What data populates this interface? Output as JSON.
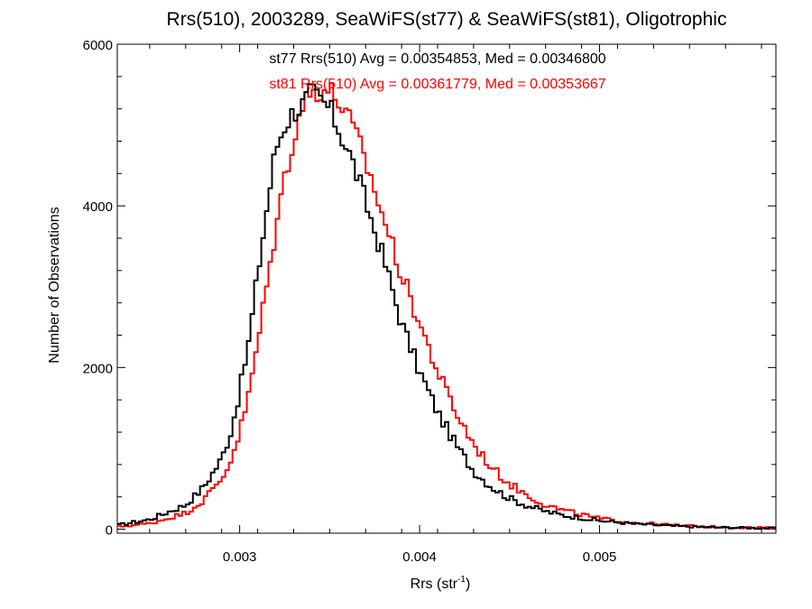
{
  "chart_data": {
    "type": "line",
    "title": "Rrs(510), 2003289, SeaWiFS(st77) & SeaWiFS(st81), Oligotrophic",
    "xlabel_main": "Rrs (str",
    "xlabel_sup": "-1",
    "xlabel_close": ")",
    "ylabel": "Number of Observations",
    "xlim": [
      0.00232,
      0.00598
    ],
    "ylim": [
      -50,
      6000
    ],
    "xticks": [
      0.003,
      0.004,
      0.005
    ],
    "xtick_labels": [
      "0.003",
      "0.004",
      "0.005"
    ],
    "yticks": [
      0,
      2000,
      4000,
      6000
    ],
    "ytick_labels": [
      "0",
      "2000",
      "4000",
      "6000"
    ],
    "grid": false,
    "legend_position": "top-center",
    "series": [
      {
        "name": "st77 Rrs(510) Avg = 0.00354853, Med = 0.00346800",
        "color": "#000000",
        "x": [
          0.00232,
          0.0025,
          0.0027,
          0.0028,
          0.0029,
          0.00295,
          0.003,
          0.00305,
          0.0031,
          0.00315,
          0.0032,
          0.00325,
          0.0033,
          0.00335,
          0.0034,
          0.00345,
          0.0035,
          0.00355,
          0.0036,
          0.00365,
          0.0037,
          0.00375,
          0.0038,
          0.00385,
          0.0039,
          0.004,
          0.0041,
          0.0042,
          0.0043,
          0.0044,
          0.0045,
          0.0046,
          0.0047,
          0.0048,
          0.0049,
          0.005,
          0.0052,
          0.0054,
          0.0056,
          0.00598
        ],
        "values": [
          50,
          120,
          300,
          520,
          870,
          1200,
          1700,
          2300,
          3150,
          3950,
          4700,
          5000,
          5170,
          5250,
          5400,
          5300,
          5200,
          4950,
          4700,
          4400,
          4050,
          3700,
          3350,
          2950,
          2550,
          1950,
          1450,
          1050,
          720,
          520,
          380,
          290,
          220,
          170,
          140,
          105,
          65,
          40,
          25,
          10
        ]
      },
      {
        "name": "st81 Rrs(510) Avg = 0.00361779, Med = 0.00353667",
        "color": "#ff0000",
        "x": [
          0.00232,
          0.0025,
          0.0027,
          0.0028,
          0.0029,
          0.00295,
          0.003,
          0.00305,
          0.0031,
          0.00315,
          0.0032,
          0.00325,
          0.0033,
          0.00335,
          0.0034,
          0.00345,
          0.0035,
          0.00355,
          0.0036,
          0.00365,
          0.0037,
          0.00375,
          0.0038,
          0.00385,
          0.0039,
          0.004,
          0.0041,
          0.0042,
          0.0043,
          0.0044,
          0.0045,
          0.0046,
          0.0047,
          0.0048,
          0.0049,
          0.005,
          0.0052,
          0.0054,
          0.0056,
          0.00598
        ],
        "values": [
          30,
          70,
          200,
          360,
          620,
          850,
          1200,
          1650,
          2300,
          3000,
          3700,
          4350,
          4850,
          5250,
          5400,
          5450,
          5420,
          5300,
          5100,
          4850,
          4550,
          4200,
          3850,
          3500,
          3150,
          2550,
          1950,
          1450,
          1050,
          760,
          560,
          420,
          300,
          230,
          180,
          130,
          80,
          50,
          30,
          12
        ]
      }
    ]
  }
}
